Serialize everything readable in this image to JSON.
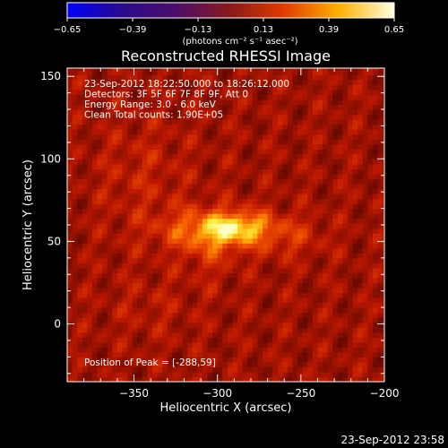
{
  "chart_data": {
    "type": "heatmap",
    "title": "Reconstructed RHESSI Image",
    "xlabel": "Heliocentric X (arcsec)",
    "ylabel": "Heliocentric Y (arcsec)",
    "xlim": [
      -390,
      -200
    ],
    "ylim": [
      -35,
      155
    ],
    "xticks": [
      -350,
      -300,
      -250,
      -200
    ],
    "yticks": [
      0,
      50,
      100,
      150
    ],
    "x_tick_labels": [
      "−350",
      "−300",
      "−250",
      "−200"
    ],
    "y_tick_labels": [
      "0",
      "50",
      "100",
      "150"
    ],
    "colorbar": {
      "range": [
        -0.65,
        0.65
      ],
      "tick_values": [
        -0.65,
        -0.39,
        -0.13,
        0.13,
        0.39,
        0.65
      ],
      "tick_labels": [
        "−0.65",
        "−0.39",
        "−0.13",
        "0.13",
        "0.39",
        "0.65"
      ],
      "units": "(photons cm⁻² s⁻¹ asec⁻²)"
    },
    "annotations": [
      "23-Sep-2012 18:22:50.000 to 18:26:12.000",
      "Detectors: 3F 5F 6F 7F 8F 9F, Att 0",
      "Energy Range: 3.0 - 6.0 keV",
      "Clean     Total counts: 1.90E+05"
    ],
    "peak_label": "Position of Peak = [-288,59]",
    "peak": {
      "x": -288,
      "y": 59,
      "value": 0.65
    },
    "sources": [
      {
        "x": -300,
        "y": 57,
        "sx": 22,
        "sy": 9,
        "amp": 0.26
      },
      {
        "x": -287,
        "y": 59,
        "sx": 13,
        "sy": 6,
        "amp": 0.16
      },
      {
        "x": -255,
        "y": 53,
        "sx": 14,
        "sy": 9,
        "amp": 0.08
      },
      {
        "x": -305,
        "y": 40,
        "sx": 10,
        "sy": 12,
        "amp": 0.06
      },
      {
        "x": -345,
        "y": 90,
        "sx": 20,
        "sy": 25,
        "amp": 0.06
      },
      {
        "x": -340,
        "y": 10,
        "sx": 18,
        "sy": 14,
        "amp": 0.04
      }
    ],
    "background_level": 0.24,
    "timestamp": "23-Sep-2012 23:58"
  }
}
